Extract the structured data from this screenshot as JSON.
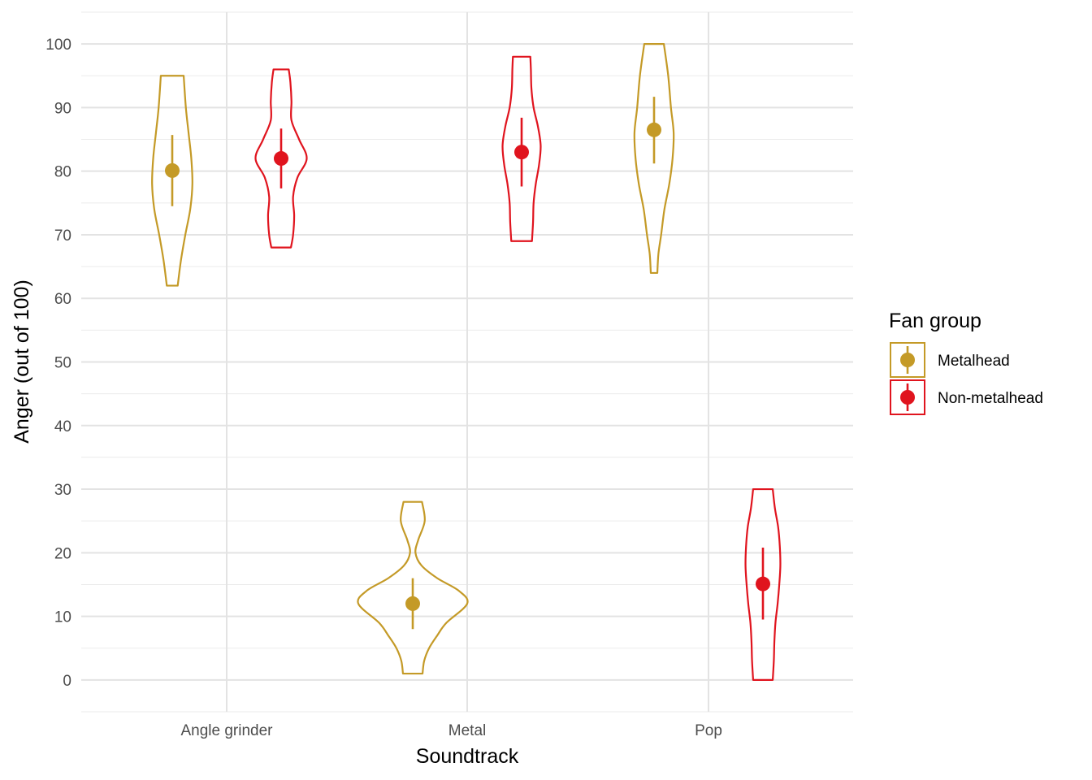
{
  "chart_data": {
    "type": "violin",
    "xlabel": "Soundtrack",
    "ylabel": "Anger (out of 100)",
    "categories": [
      "Angle grinder",
      "Metal",
      "Pop"
    ],
    "ylim": [
      -5,
      105
    ],
    "yticks": [
      0,
      10,
      20,
      30,
      40,
      50,
      60,
      70,
      80,
      90,
      100
    ],
    "grid": true,
    "legend": {
      "title": "Fan group",
      "position": "right"
    },
    "series": [
      {
        "name": "Metalhead",
        "color": "#C49A27",
        "groups": [
          {
            "category": "Angle grinder",
            "mean": 80.1,
            "ci": [
              74.5,
              85.7
            ],
            "min": 62,
            "max": 95,
            "profile": [
              [
                62,
                0.1
              ],
              [
                66,
                0.16
              ],
              [
                70,
                0.24
              ],
              [
                74,
                0.33
              ],
              [
                78,
                0.37
              ],
              [
                82,
                0.35
              ],
              [
                86,
                0.3
              ],
              [
                90,
                0.25
              ],
              [
                95,
                0.21
              ]
            ]
          },
          {
            "category": "Metal",
            "mean": 12,
            "ci": [
              8,
              16
            ],
            "min": 1,
            "max": 28,
            "profile": [
              [
                1,
                0.18
              ],
              [
                3,
                0.21
              ],
              [
                5,
                0.3
              ],
              [
                7,
                0.45
              ],
              [
                9,
                0.62
              ],
              [
                12,
                1.0
              ],
              [
                14,
                0.85
              ],
              [
                16,
                0.45
              ],
              [
                18,
                0.16
              ],
              [
                20,
                0.05
              ],
              [
                22,
                0.1
              ],
              [
                25,
                0.22
              ],
              [
                28,
                0.17
              ]
            ]
          },
          {
            "category": "Pop",
            "mean": 86.5,
            "ci": [
              81.2,
              91.7
            ],
            "min": 64,
            "max": 100,
            "profile": [
              [
                64,
                0.06
              ],
              [
                67,
                0.08
              ],
              [
                70,
                0.13
              ],
              [
                74,
                0.19
              ],
              [
                78,
                0.28
              ],
              [
                82,
                0.34
              ],
              [
                86,
                0.36
              ],
              [
                90,
                0.31
              ],
              [
                95,
                0.26
              ],
              [
                100,
                0.18
              ]
            ]
          }
        ]
      },
      {
        "name": "Non-metalhead",
        "color": "#E0141E",
        "groups": [
          {
            "category": "Angle grinder",
            "mean": 82,
            "ci": [
              77.3,
              86.7
            ],
            "min": 68,
            "max": 96,
            "profile": [
              [
                68,
                0.18
              ],
              [
                70,
                0.22
              ],
              [
                73,
                0.24
              ],
              [
                76,
                0.22
              ],
              [
                79,
                0.3
              ],
              [
                82,
                0.47
              ],
              [
                85,
                0.33
              ],
              [
                88,
                0.19
              ],
              [
                91,
                0.19
              ],
              [
                94,
                0.17
              ],
              [
                96,
                0.14
              ]
            ]
          },
          {
            "category": "Metal",
            "mean": 83,
            "ci": [
              77.6,
              88.4
            ],
            "min": 69,
            "max": 98,
            "profile": [
              [
                69,
                0.19
              ],
              [
                72,
                0.21
              ],
              [
                75,
                0.22
              ],
              [
                78,
                0.26
              ],
              [
                81,
                0.32
              ],
              [
                84,
                0.35
              ],
              [
                87,
                0.3
              ],
              [
                90,
                0.22
              ],
              [
                93,
                0.18
              ],
              [
                96,
                0.17
              ],
              [
                98,
                0.16
              ]
            ]
          },
          {
            "category": "Pop",
            "mean": 15.1,
            "ci": [
              9.5,
              20.8
            ],
            "min": 0,
            "max": 30,
            "profile": [
              [
                0,
                0.18
              ],
              [
                3,
                0.2
              ],
              [
                6,
                0.21
              ],
              [
                9,
                0.23
              ],
              [
                12,
                0.27
              ],
              [
                15,
                0.3
              ],
              [
                18,
                0.32
              ],
              [
                21,
                0.31
              ],
              [
                24,
                0.28
              ],
              [
                27,
                0.22
              ],
              [
                30,
                0.18
              ]
            ]
          }
        ]
      }
    ]
  }
}
